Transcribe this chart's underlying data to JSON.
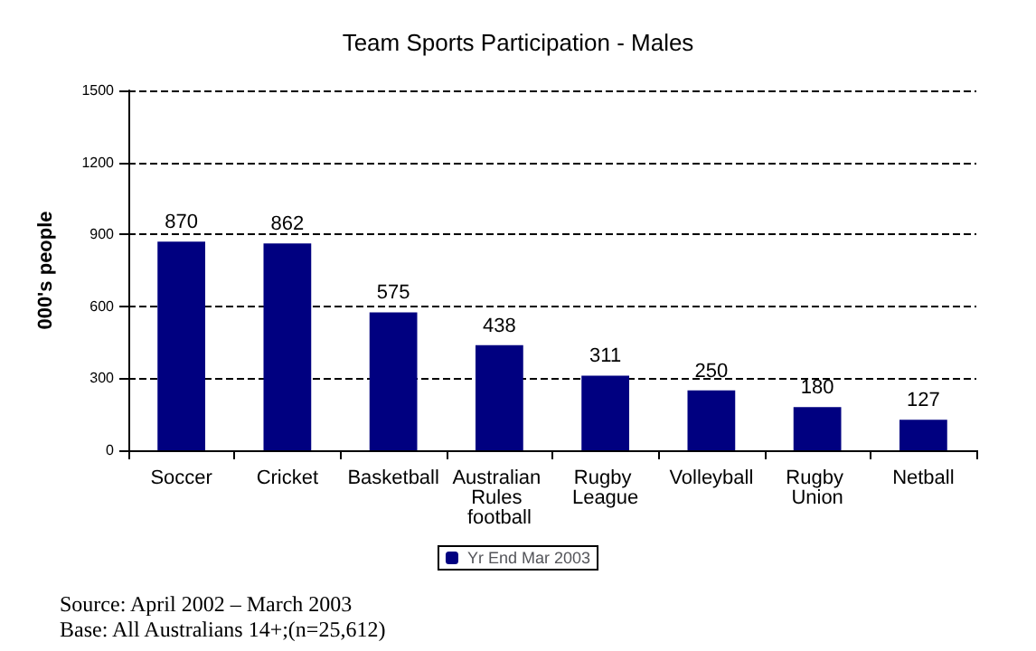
{
  "chart_data": {
    "type": "bar",
    "title": "Team Sports Participation - Males",
    "ylabel": "000's people",
    "categories": [
      "Soccer",
      "Cricket",
      "Basketball",
      "Australian Rules football",
      "Rugby League",
      "Volleyball",
      "Rugby Union",
      "Netball"
    ],
    "series": [
      {
        "name": "Yr End Mar 2003",
        "color": "#000080",
        "values": [
          870,
          862,
          575,
          438,
          311,
          250,
          180,
          127
        ]
      }
    ],
    "ylim": [
      0,
      1500
    ],
    "yticks": [
      0,
      300,
      600,
      900,
      1200,
      1500
    ],
    "grid": "y",
    "legend": "bottom",
    "data_labels": true,
    "annotations": [
      "Source: April 2002 – March 2003",
      "Base: All Australians 14+;(n=25,612)"
    ]
  }
}
